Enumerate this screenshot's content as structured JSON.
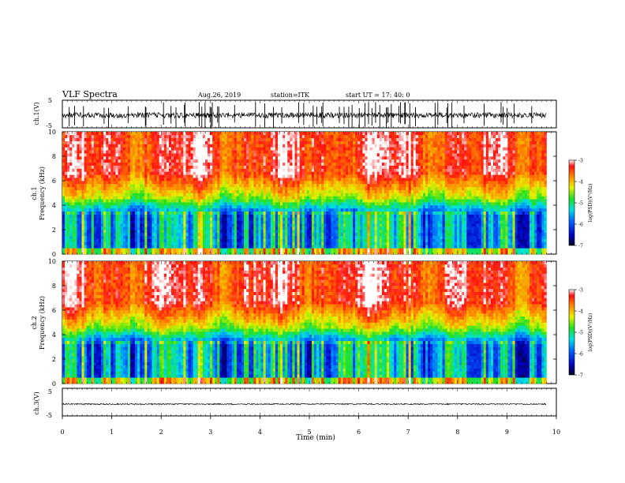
{
  "header": {
    "title": "VLF Spectra",
    "date": "Aug.26, 2019",
    "station": "station=ITK",
    "start": "start UT =  17: 40: 0"
  },
  "chart_data": [
    {
      "type": "line",
      "panel": "ch1-waveform",
      "ylabel": "ch.1(V)",
      "yticks": [
        "5",
        "-5"
      ],
      "ylim": [
        -5,
        5
      ],
      "xlim": [
        0,
        10
      ],
      "color": "#000000"
    },
    {
      "type": "heatmap",
      "panel": "ch1-spectrogram",
      "ylabel_channel": "ch.1",
      "ylabel": "Frequency (kHz)",
      "yticks": [
        "0",
        "2",
        "4",
        "6",
        "8",
        "10"
      ],
      "ylim": [
        0,
        10
      ],
      "xlim": [
        0,
        9.8
      ],
      "colorbar": {
        "label": "log(PSD)(V²/Hz)",
        "ticks": [
          "-3",
          "-4",
          "-5",
          "-6",
          "-7"
        ],
        "range": [
          -7,
          -3
        ]
      }
    },
    {
      "type": "heatmap",
      "panel": "ch2-spectrogram",
      "ylabel_channel": "ch.2",
      "ylabel": "Frequency (kHz)",
      "yticks": [
        "0",
        "2",
        "4",
        "6",
        "8",
        "10"
      ],
      "ylim": [
        0,
        10
      ],
      "xlim": [
        0,
        9.8
      ],
      "colorbar": {
        "label": "log(PSD)(V²/Hz)",
        "ticks": [
          "-3",
          "-4",
          "-5",
          "-6",
          "-7"
        ],
        "range": [
          -7,
          -3
        ]
      }
    },
    {
      "type": "line",
      "panel": "ch3-waveform",
      "ylabel": "ch.3(V)",
      "yticks": [
        "5",
        "-5"
      ],
      "ylim": [
        -5,
        5
      ],
      "xlim": [
        0,
        10
      ],
      "color": "#000000"
    }
  ],
  "xaxis": {
    "label": "Time (min)",
    "ticks": [
      "0",
      "1",
      "2",
      "3",
      "4",
      "5",
      "6",
      "7",
      "8",
      "9",
      "10"
    ]
  }
}
